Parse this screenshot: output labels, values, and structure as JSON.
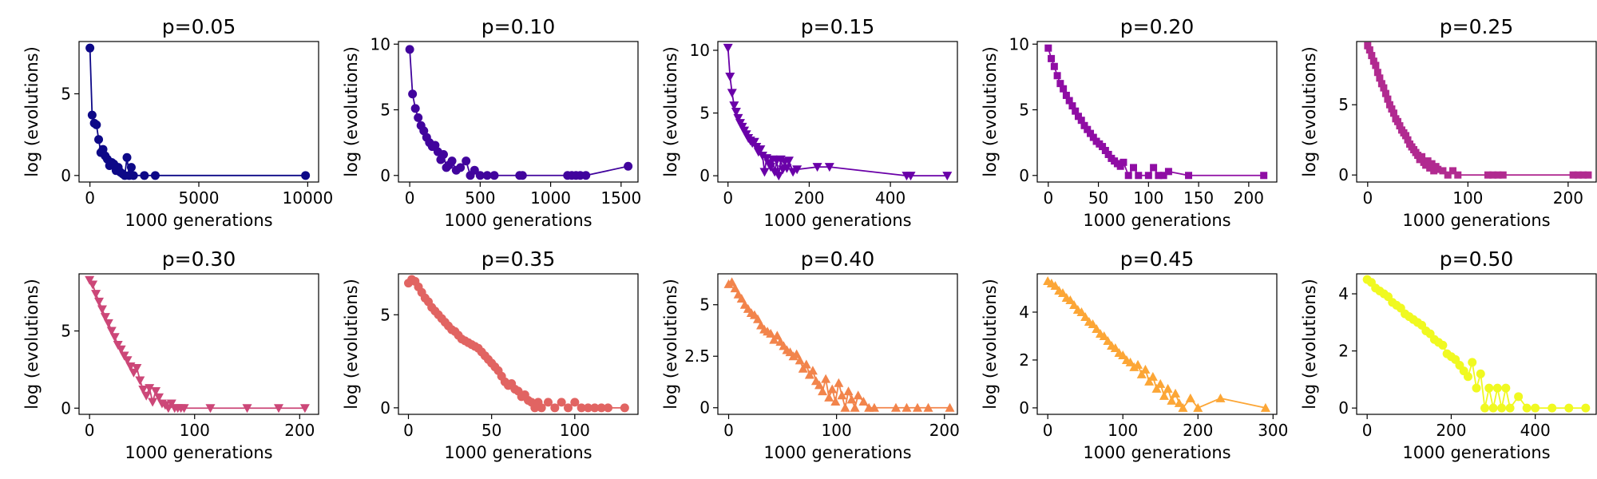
{
  "chart_data": [
    {
      "type": "line",
      "title": "p=0.05",
      "xlabel": "1000 generations",
      "ylabel": "log (evolutions)",
      "xlim": [
        -500,
        10500
      ],
      "ylim": [
        -0.4,
        8.2
      ],
      "xticks": [
        0,
        5000,
        10000
      ],
      "yticks": [
        0,
        5
      ],
      "marker": "circle",
      "color": "#0d0887",
      "series": [
        {
          "x": [
            0,
            100,
            200,
            300,
            400,
            500,
            600,
            700,
            800,
            900,
            1000,
            1100,
            1200,
            1300,
            1400,
            1500,
            1600,
            1700,
            1800,
            1900,
            2000,
            2500,
            3000,
            9900
          ],
          "y": [
            7.8,
            3.7,
            3.2,
            3.1,
            2.2,
            1.4,
            1.6,
            1.2,
            1.0,
            0.6,
            0.8,
            0.7,
            0.3,
            0.5,
            0.2,
            0.1,
            0.0,
            1.1,
            0.0,
            0.5,
            0.0,
            0.0,
            0.0,
            0.0
          ]
        }
      ]
    },
    {
      "type": "line",
      "title": "p=0.10",
      "xlabel": "1000 generations",
      "ylabel": "log (evolutions)",
      "xlim": [
        -80,
        1620
      ],
      "ylim": [
        -0.5,
        10.2
      ],
      "xticks": [
        0,
        500,
        1000,
        1500
      ],
      "yticks": [
        0,
        5,
        10
      ],
      "marker": "circle",
      "color": "#41049d",
      "series": [
        {
          "x": [
            0,
            20,
            40,
            60,
            80,
            100,
            120,
            140,
            160,
            180,
            200,
            220,
            240,
            260,
            280,
            300,
            330,
            360,
            400,
            430,
            460,
            500,
            550,
            600,
            780,
            800,
            1120,
            1150,
            1180,
            1210,
            1250,
            1550
          ],
          "y": [
            9.6,
            6.2,
            5.1,
            4.4,
            3.8,
            3.4,
            2.9,
            2.5,
            2.2,
            2.3,
            1.8,
            1.2,
            1.6,
            0.6,
            0.8,
            1.1,
            0.4,
            0.6,
            1.1,
            0.0,
            0.4,
            0.0,
            0.0,
            0.0,
            0.0,
            0.0,
            0.0,
            0.0,
            0.0,
            0.0,
            0.0,
            0.7
          ]
        }
      ]
    },
    {
      "type": "line",
      "title": "p=0.15",
      "xlabel": "1000 generations",
      "ylabel": "log (evolutions)",
      "xlim": [
        -25,
        565
      ],
      "ylim": [
        -0.5,
        10.7
      ],
      "xticks": [
        0,
        200,
        400
      ],
      "yticks": [
        0,
        5,
        10
      ],
      "marker": "triangle-down",
      "color": "#6a00a8",
      "series": [
        {
          "x": [
            0,
            5,
            10,
            15,
            20,
            25,
            30,
            35,
            40,
            45,
            50,
            55,
            60,
            65,
            70,
            75,
            80,
            85,
            90,
            95,
            100,
            105,
            110,
            115,
            120,
            125,
            130,
            135,
            140,
            145,
            150,
            160,
            170,
            220,
            250,
            440,
            450,
            540
          ],
          "y": [
            10.2,
            7.9,
            6.6,
            5.6,
            5.1,
            4.6,
            4.2,
            3.9,
            3.6,
            3.3,
            3.0,
            2.8,
            2.6,
            2.7,
            2.3,
            1.9,
            2.1,
            1.6,
            0.3,
            1.4,
            1.0,
            0.7,
            1.3,
            0.3,
            1.2,
            0.0,
            1.3,
            0.5,
            1.1,
            0.6,
            1.2,
            0.3,
            0.5,
            0.7,
            0.7,
            0.0,
            0.0,
            0.0
          ]
        }
      ]
    },
    {
      "type": "line",
      "title": "p=0.20",
      "xlabel": "1000 generations",
      "ylabel": "log (evolutions)",
      "xlim": [
        -11,
        228
      ],
      "ylim": [
        -0.5,
        10.2
      ],
      "xticks": [
        0,
        50,
        100,
        150,
        200
      ],
      "yticks": [
        0,
        5,
        10
      ],
      "marker": "square",
      "color": "#8f0da4",
      "series": [
        {
          "x": [
            0,
            3,
            6,
            9,
            12,
            15,
            18,
            21,
            24,
            27,
            30,
            33,
            36,
            39,
            42,
            45,
            48,
            51,
            54,
            57,
            60,
            63,
            66,
            69,
            72,
            75,
            80,
            85,
            90,
            100,
            105,
            110,
            115,
            120,
            140,
            215
          ],
          "y": [
            9.7,
            8.9,
            8.3,
            7.6,
            7.0,
            6.6,
            6.1,
            5.7,
            5.3,
            4.9,
            4.5,
            4.2,
            3.8,
            3.5,
            3.2,
            2.9,
            2.6,
            2.4,
            2.2,
            1.9,
            1.6,
            1.3,
            1.1,
            0.9,
            0.7,
            1.0,
            0.0,
            0.6,
            0.0,
            0.0,
            0.6,
            0.0,
            0.0,
            0.3,
            0.0,
            0.0
          ]
        }
      ]
    },
    {
      "type": "line",
      "title": "p=0.25",
      "xlabel": "1000 generations",
      "ylabel": "log (evolutions)",
      "xlim": [
        -11,
        228
      ],
      "ylim": [
        -0.5,
        9.5
      ],
      "xticks": [
        0,
        100,
        200
      ],
      "yticks": [
        0,
        5
      ],
      "marker": "square",
      "color": "#b12a90",
      "series": [
        {
          "x": [
            0,
            2,
            4,
            6,
            8,
            10,
            12,
            14,
            16,
            18,
            20,
            22,
            24,
            26,
            28,
            30,
            32,
            34,
            36,
            38,
            40,
            42,
            44,
            46,
            48,
            50,
            52,
            54,
            56,
            58,
            60,
            62,
            64,
            66,
            68,
            70,
            75,
            80,
            85,
            90,
            120,
            125,
            130,
            135,
            205,
            210,
            215,
            220
          ],
          "y": [
            9.2,
            8.9,
            8.5,
            8.1,
            7.8,
            7.3,
            6.9,
            6.5,
            6.2,
            5.8,
            5.4,
            5.0,
            4.7,
            4.4,
            4.0,
            3.8,
            3.5,
            3.2,
            3.0,
            2.8,
            2.5,
            2.2,
            2.0,
            1.8,
            1.6,
            1.4,
            1.1,
            1.3,
            0.9,
            0.7,
            1.0,
            0.5,
            0.8,
            0.3,
            0.6,
            0.4,
            0.3,
            0.0,
            0.3,
            0.0,
            0.0,
            0.0,
            0.0,
            0.0,
            0.0,
            0.0,
            0.0,
            0.0
          ]
        }
      ]
    },
    {
      "type": "line",
      "title": "p=0.30",
      "xlabel": "1000 generations",
      "ylabel": "log (evolutions)",
      "xlim": [
        -10,
        218
      ],
      "ylim": [
        -0.4,
        8.7
      ],
      "xticks": [
        0,
        100,
        200
      ],
      "yticks": [
        0,
        5
      ],
      "marker": "triangle-down",
      "color": "#cc4778",
      "series": [
        {
          "x": [
            0,
            3,
            6,
            9,
            12,
            15,
            18,
            21,
            24,
            27,
            30,
            33,
            36,
            39,
            42,
            45,
            48,
            51,
            54,
            57,
            60,
            63,
            66,
            69,
            72,
            75,
            78,
            81,
            84,
            87,
            90,
            115,
            150,
            180,
            205
          ],
          "y": [
            8.3,
            8.0,
            7.4,
            6.9,
            6.4,
            5.9,
            5.5,
            5.0,
            4.6,
            4.1,
            3.8,
            3.4,
            3.1,
            2.7,
            2.3,
            2.6,
            1.8,
            1.2,
            0.8,
            1.3,
            0.4,
            1.1,
            0.7,
            0.3,
            0.2,
            0.0,
            0.3,
            0.0,
            0.0,
            0.0,
            0.0,
            0.0,
            0.0,
            0.0,
            0.0
          ]
        }
      ]
    },
    {
      "type": "line",
      "title": "p=0.35",
      "xlabel": "1000 generations",
      "ylabel": "log (evolutions)",
      "xlim": [
        -6,
        138
      ],
      "ylim": [
        -0.35,
        7.2
      ],
      "xticks": [
        0,
        50,
        100
      ],
      "yticks": [
        0,
        5
      ],
      "marker": "circle",
      "color": "#e16462",
      "series": [
        {
          "x": [
            0,
            2,
            4,
            6,
            8,
            10,
            12,
            14,
            16,
            18,
            20,
            22,
            24,
            26,
            28,
            30,
            32,
            34,
            36,
            38,
            40,
            42,
            44,
            46,
            48,
            50,
            52,
            54,
            56,
            58,
            60,
            62,
            64,
            66,
            68,
            70,
            72,
            74,
            76,
            78,
            80,
            84,
            88,
            92,
            96,
            100,
            104,
            108,
            112,
            116,
            120,
            130
          ],
          "y": [
            6.7,
            6.9,
            6.8,
            6.5,
            6.2,
            5.9,
            5.7,
            5.4,
            5.2,
            5.0,
            4.8,
            4.6,
            4.4,
            4.2,
            4.1,
            3.9,
            3.7,
            3.6,
            3.5,
            3.4,
            3.3,
            3.2,
            3.0,
            2.8,
            2.6,
            2.4,
            2.2,
            2.0,
            1.7,
            1.4,
            1.2,
            1.3,
            1.0,
            0.9,
            0.6,
            0.7,
            0.4,
            0.3,
            0.0,
            0.3,
            0.0,
            0.3,
            0.0,
            0.3,
            0.0,
            0.3,
            0.0,
            0.0,
            0.0,
            0.0,
            0.0,
            0.0
          ]
        }
      ]
    },
    {
      "type": "line",
      "title": "p=0.40",
      "xlabel": "1000 generations",
      "ylabel": "log (evolutions)",
      "xlim": [
        -10,
        212
      ],
      "ylim": [
        -0.32,
        6.5
      ],
      "xticks": [
        0,
        100,
        200
      ],
      "yticks": [
        0.0,
        2.5,
        5.0
      ],
      "marker": "triangle-up",
      "color": "#f2844b",
      "series": [
        {
          "x": [
            0,
            3,
            6,
            9,
            12,
            15,
            18,
            21,
            24,
            27,
            30,
            33,
            36,
            39,
            42,
            45,
            48,
            51,
            54,
            57,
            60,
            63,
            66,
            69,
            72,
            75,
            78,
            81,
            84,
            87,
            90,
            93,
            96,
            99,
            102,
            105,
            108,
            111,
            114,
            117,
            120,
            125,
            130,
            135,
            155,
            165,
            175,
            185,
            205
          ],
          "y": [
            6.0,
            6.1,
            5.8,
            5.5,
            5.3,
            5.0,
            4.8,
            4.6,
            4.5,
            4.3,
            4.0,
            3.8,
            3.7,
            3.6,
            3.3,
            3.5,
            3.2,
            3.0,
            2.8,
            2.7,
            2.5,
            2.6,
            2.3,
            1.9,
            2.1,
            1.6,
            1.8,
            1.3,
            1.1,
            0.8,
            1.4,
            0.5,
            0.9,
            0.3,
            1.2,
            0.6,
            0.0,
            0.8,
            0.4,
            0.0,
            0.6,
            0.3,
            0.0,
            0.0,
            0.0,
            0.0,
            0.0,
            0.0,
            0.0
          ]
        }
      ]
    },
    {
      "type": "line",
      "title": "p=0.45",
      "xlabel": "1000 generations",
      "ylabel": "log (evolutions)",
      "xlim": [
        -14,
        305
      ],
      "ylim": [
        -0.27,
        5.6
      ],
      "xticks": [
        0,
        100,
        200,
        300
      ],
      "yticks": [
        0,
        2,
        4
      ],
      "marker": "triangle-up",
      "color": "#fca636",
      "series": [
        {
          "x": [
            0,
            5,
            10,
            15,
            20,
            25,
            30,
            35,
            40,
            45,
            50,
            55,
            60,
            65,
            70,
            75,
            80,
            85,
            90,
            95,
            100,
            105,
            110,
            115,
            120,
            125,
            130,
            135,
            140,
            145,
            150,
            155,
            160,
            165,
            170,
            175,
            180,
            190,
            200,
            230,
            290
          ],
          "y": [
            5.3,
            5.2,
            5.1,
            4.9,
            4.8,
            4.6,
            4.5,
            4.3,
            4.1,
            4.0,
            3.8,
            3.6,
            3.5,
            3.3,
            3.1,
            3.0,
            2.8,
            2.6,
            2.5,
            2.3,
            2.2,
            2.0,
            1.9,
            1.7,
            1.8,
            1.4,
            1.6,
            1.1,
            1.3,
            0.8,
            1.0,
            0.5,
            0.8,
            0.3,
            0.6,
            0.2,
            0.0,
            0.4,
            0.0,
            0.4,
            0.0
          ]
        }
      ]
    },
    {
      "type": "line",
      "title": "p=0.50",
      "xlabel": "1000 generations",
      "ylabel": "log (evolutions)",
      "xlim": [
        -25,
        545
      ],
      "ylim": [
        -0.22,
        4.7
      ],
      "xticks": [
        0,
        200,
        400
      ],
      "yticks": [
        0,
        2,
        4
      ],
      "marker": "circle",
      "color": "#f0f921",
      "series": [
        {
          "x": [
            0,
            10,
            20,
            30,
            40,
            50,
            60,
            70,
            80,
            90,
            100,
            110,
            120,
            130,
            140,
            150,
            160,
            170,
            180,
            190,
            200,
            210,
            220,
            230,
            240,
            250,
            260,
            270,
            280,
            290,
            300,
            310,
            320,
            330,
            340,
            360,
            380,
            400,
            440,
            480,
            520
          ],
          "y": [
            4.5,
            4.4,
            4.2,
            4.1,
            4.0,
            3.9,
            3.7,
            3.6,
            3.5,
            3.3,
            3.2,
            3.1,
            3.0,
            2.9,
            2.7,
            2.6,
            2.4,
            2.3,
            2.2,
            1.9,
            1.8,
            1.7,
            1.5,
            1.3,
            1.1,
            1.6,
            0.7,
            1.2,
            0.0,
            0.7,
            0.0,
            0.7,
            0.0,
            0.7,
            0.0,
            0.4,
            0.0,
            0.0,
            0.0,
            0.0,
            0.0
          ]
        }
      ]
    }
  ]
}
